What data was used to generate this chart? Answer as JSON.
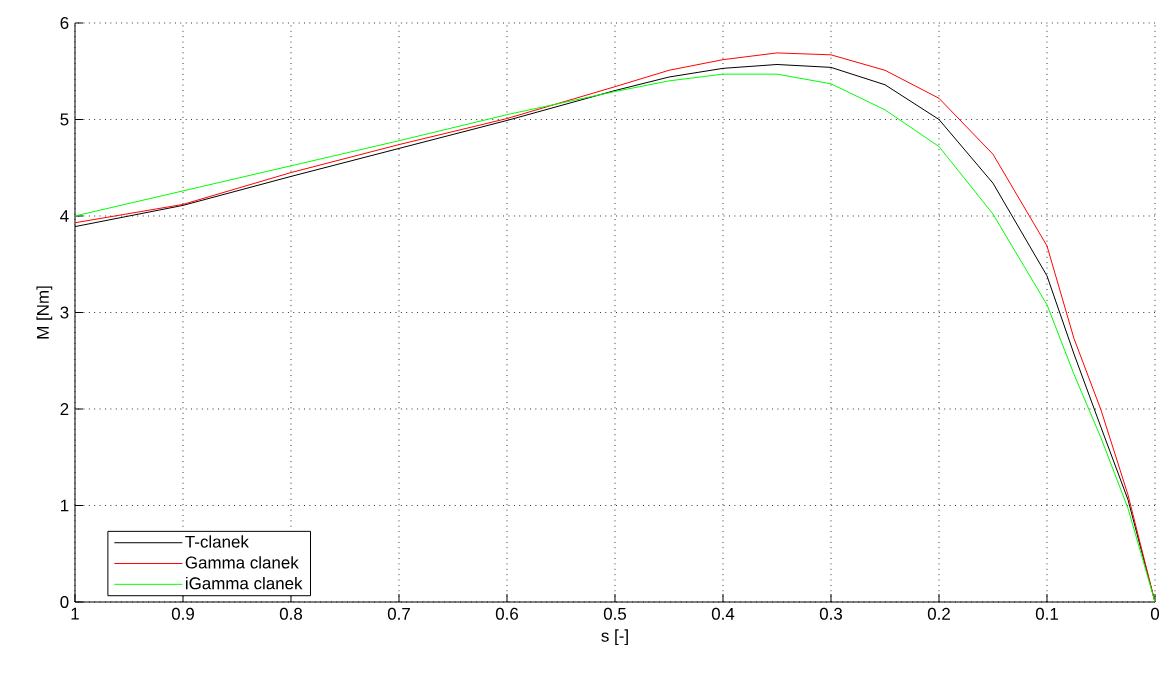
{
  "chart_data": {
    "type": "line",
    "xlabel": "s [-]",
    "ylabel": "M [Nm]",
    "x": [
      1,
      0.9,
      0.8,
      0.7,
      0.6,
      0.5,
      0.45,
      0.4,
      0.35,
      0.3,
      0.25,
      0.2,
      0.15,
      0.1,
      0.075,
      0.05,
      0.025,
      0
    ],
    "series": [
      {
        "name": "T-clanek",
        "color": "#000000",
        "values": [
          3.89,
          4.11,
          4.41,
          4.7,
          4.99,
          5.3,
          5.44,
          5.53,
          5.57,
          5.54,
          5.36,
          5.0,
          4.34,
          3.38,
          2.57,
          1.81,
          1.06,
          0
        ]
      },
      {
        "name": "Gamma clanek",
        "color": "#ff0000",
        "values": [
          3.93,
          4.12,
          4.45,
          4.74,
          5.01,
          5.34,
          5.51,
          5.62,
          5.69,
          5.67,
          5.51,
          5.22,
          4.64,
          3.69,
          2.73,
          1.99,
          1.11,
          0
        ]
      },
      {
        "name": "iGamma clanek",
        "color": "#00ff00",
        "values": [
          4.0,
          4.26,
          4.52,
          4.78,
          5.05,
          5.29,
          5.4,
          5.47,
          5.47,
          5.37,
          5.1,
          4.72,
          4.02,
          3.08,
          2.36,
          1.7,
          0.97,
          0
        ]
      }
    ],
    "xlim": [
      1,
      0
    ],
    "ylim": [
      0,
      6
    ],
    "xticks": [
      1,
      0.9,
      0.8,
      0.7,
      0.6,
      0.5,
      0.4,
      0.3,
      0.2,
      0.1,
      0
    ],
    "yticks": [
      0,
      1,
      2,
      3,
      4,
      5,
      6
    ],
    "grid": true,
    "legend": "bottom left",
    "line_style": "solid",
    "marker": "none"
  }
}
